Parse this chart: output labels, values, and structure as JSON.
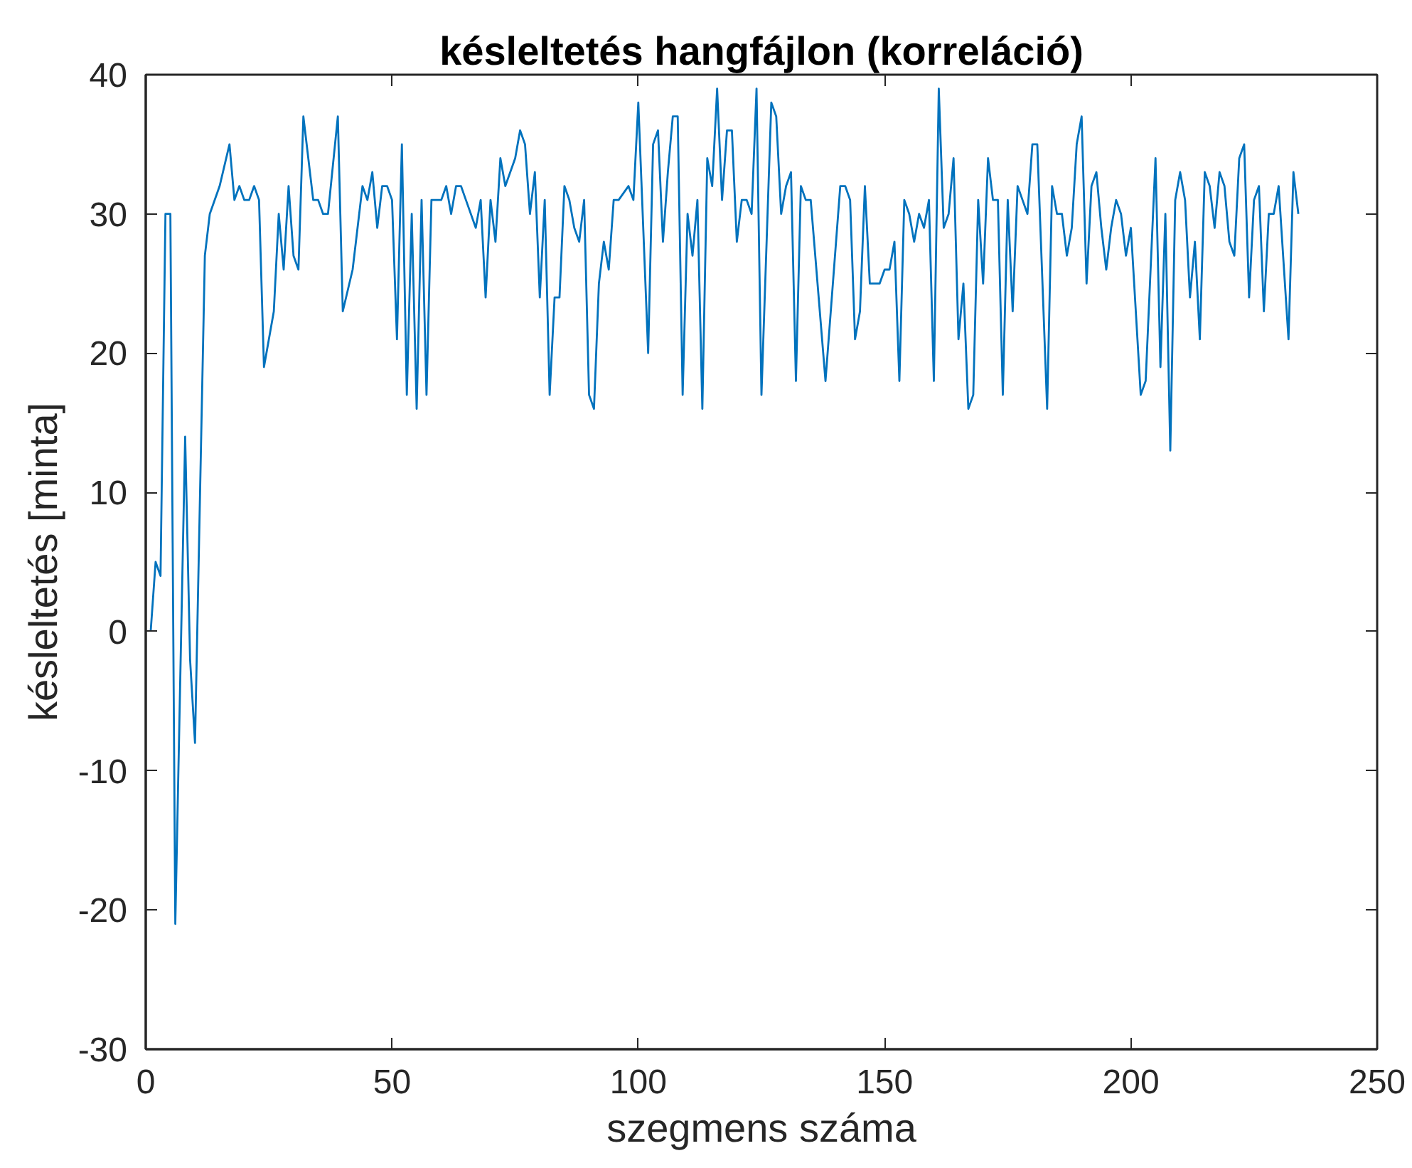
{
  "chart_data": {
    "type": "line",
    "title": "késleltetés hangfájlon (korreláció)",
    "xlabel": "szegmens száma",
    "ylabel": "késleltetés [minta]",
    "xlim": [
      0,
      250
    ],
    "xticks": [
      0,
      50,
      100,
      150,
      200,
      250
    ],
    "ylim": [
      -30,
      40
    ],
    "yticks": [
      -30,
      -20,
      -10,
      0,
      10,
      20,
      30,
      40
    ],
    "series": [
      {
        "color": "#0072bd",
        "x": [
          1,
          2,
          3,
          4,
          5,
          6,
          8,
          9,
          10,
          12,
          13,
          15,
          17,
          18,
          19,
          20,
          21,
          22,
          23,
          24,
          26,
          27,
          28,
          29,
          30,
          31,
          32,
          34,
          35,
          36,
          37,
          39,
          40,
          42,
          43,
          44,
          45,
          46,
          47,
          48,
          49,
          50,
          51,
          52,
          53,
          54,
          55,
          56,
          57,
          58,
          60,
          61,
          62,
          63,
          64,
          65,
          67,
          68,
          69,
          70,
          71,
          72,
          73,
          75,
          76,
          77,
          78,
          79,
          80,
          81,
          82,
          83,
          84,
          85,
          86,
          87,
          88,
          89,
          90,
          91,
          92,
          93,
          94,
          95,
          96,
          98,
          99,
          100,
          102,
          103,
          104,
          105,
          106,
          107,
          108,
          109,
          110,
          111,
          112,
          113,
          114,
          115,
          116,
          117,
          118,
          119,
          120,
          121,
          122,
          123,
          124,
          125,
          127,
          128,
          129,
          130,
          131,
          132,
          133,
          134,
          135,
          138,
          141,
          142,
          143,
          144,
          145,
          146,
          147,
          149,
          150,
          151,
          152,
          153,
          154,
          155,
          156,
          157,
          158,
          159,
          160,
          161,
          162,
          163,
          164,
          165,
          166,
          167,
          168,
          169,
          170,
          171,
          172,
          173,
          174,
          175,
          176,
          177,
          178,
          179,
          180,
          181,
          183,
          184,
          185,
          186,
          187,
          188,
          189,
          190,
          191,
          192,
          193,
          194,
          195,
          196,
          197,
          198,
          199,
          200,
          202,
          203,
          205,
          206,
          207,
          208,
          209,
          210,
          211,
          212,
          213,
          214,
          215,
          216,
          217,
          218,
          219,
          220,
          221,
          222,
          223,
          224,
          225,
          226,
          227,
          228,
          229,
          230,
          232,
          233,
          234
        ],
        "values": [
          0,
          5,
          4,
          30,
          30,
          -21,
          14,
          -2,
          -8,
          27,
          30,
          32,
          35,
          31,
          32,
          31,
          31,
          32,
          31,
          19,
          23,
          30,
          26,
          32,
          27,
          26,
          37,
          31,
          31,
          30,
          30,
          37,
          23,
          26,
          29,
          32,
          31,
          33,
          29,
          32,
          32,
          31,
          21,
          35,
          17,
          30,
          16,
          31,
          17,
          31,
          31,
          32,
          30,
          32,
          32,
          31,
          29,
          31,
          24,
          31,
          28,
          34,
          32,
          34,
          36,
          35,
          30,
          33,
          24,
          31,
          17,
          24,
          24,
          32,
          31,
          29,
          28,
          31,
          17,
          16,
          25,
          28,
          26,
          31,
          31,
          32,
          31,
          38,
          20,
          35,
          36,
          28,
          33,
          37,
          37,
          17,
          30,
          27,
          31,
          16,
          34,
          32,
          39,
          31,
          36,
          36,
          28,
          31,
          31,
          30,
          39,
          17,
          38,
          37,
          30,
          32,
          33,
          18,
          32,
          31,
          31,
          18,
          32,
          32,
          31,
          21,
          23,
          32,
          25,
          25,
          26,
          26,
          28,
          18,
          31,
          30,
          28,
          30,
          29,
          31,
          18,
          39,
          29,
          30,
          34,
          21,
          25,
          16,
          17,
          31,
          25,
          34,
          31,
          31,
          17,
          31,
          23,
          32,
          31,
          30,
          35,
          35,
          16,
          32,
          30,
          30,
          27,
          29,
          35,
          37,
          25,
          32,
          33,
          29,
          26,
          29,
          31,
          30,
          27,
          29,
          17,
          18,
          34,
          19,
          30,
          13,
          31,
          33,
          31,
          24,
          28,
          21,
          33,
          32,
          29,
          33,
          32,
          28,
          27,
          34,
          35,
          24,
          31,
          32,
          23,
          30,
          30,
          32,
          21,
          33,
          30
        ]
      }
    ]
  }
}
